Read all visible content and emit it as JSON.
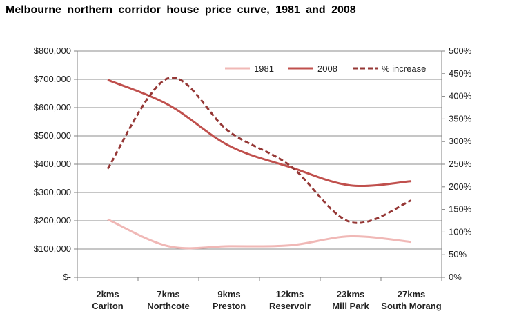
{
  "colors": {
    "series_1981": "#f0b8b6",
    "series_2008": "#c0504d",
    "series_increase": "#953735",
    "gridline": "#8c8c8c",
    "axis": "#808080"
  },
  "chart_data": {
    "type": "line",
    "title": "Melbourne  northern  corridor  house  price  curve,  1981  and  2008",
    "categories": [
      [
        "2kms",
        "Carlton"
      ],
      [
        "7kms",
        "Northcote"
      ],
      [
        "9kms",
        "Preston"
      ],
      [
        "12kms",
        "Reservoir"
      ],
      [
        "23kms",
        "Mill Park"
      ],
      [
        "27kms",
        "South Morang"
      ]
    ],
    "y_left": {
      "min": 0,
      "max": 800000,
      "step": 100000,
      "tick_labels": [
        "$-",
        "$100,000",
        "$200,000",
        "$300,000",
        "$400,000",
        "$500,000",
        "$600,000",
        "$700,000",
        "$800,000"
      ]
    },
    "y_right": {
      "min": 0,
      "max": 500,
      "step": 50,
      "tick_labels": [
        "0%",
        "50%",
        "100%",
        "150%",
        "200%",
        "250%",
        "300%",
        "350%",
        "400%",
        "450%",
        "500%"
      ]
    },
    "series": [
      {
        "name": "1981",
        "axis": "left",
        "style": "solid",
        "color_key": "series_1981",
        "values": [
          205000,
          110000,
          110000,
          113000,
          145000,
          125000
        ]
      },
      {
        "name": "2008",
        "axis": "left",
        "style": "solid",
        "color_key": "series_2008",
        "values": [
          698000,
          610000,
          465000,
          390000,
          325000,
          340000
        ]
      },
      {
        "name": "% increase",
        "axis": "right",
        "style": "dashed",
        "color_key": "series_increase",
        "values": [
          240,
          440,
          322,
          247,
          122,
          170
        ]
      }
    ],
    "legend_position": "top-right",
    "grid": true
  }
}
